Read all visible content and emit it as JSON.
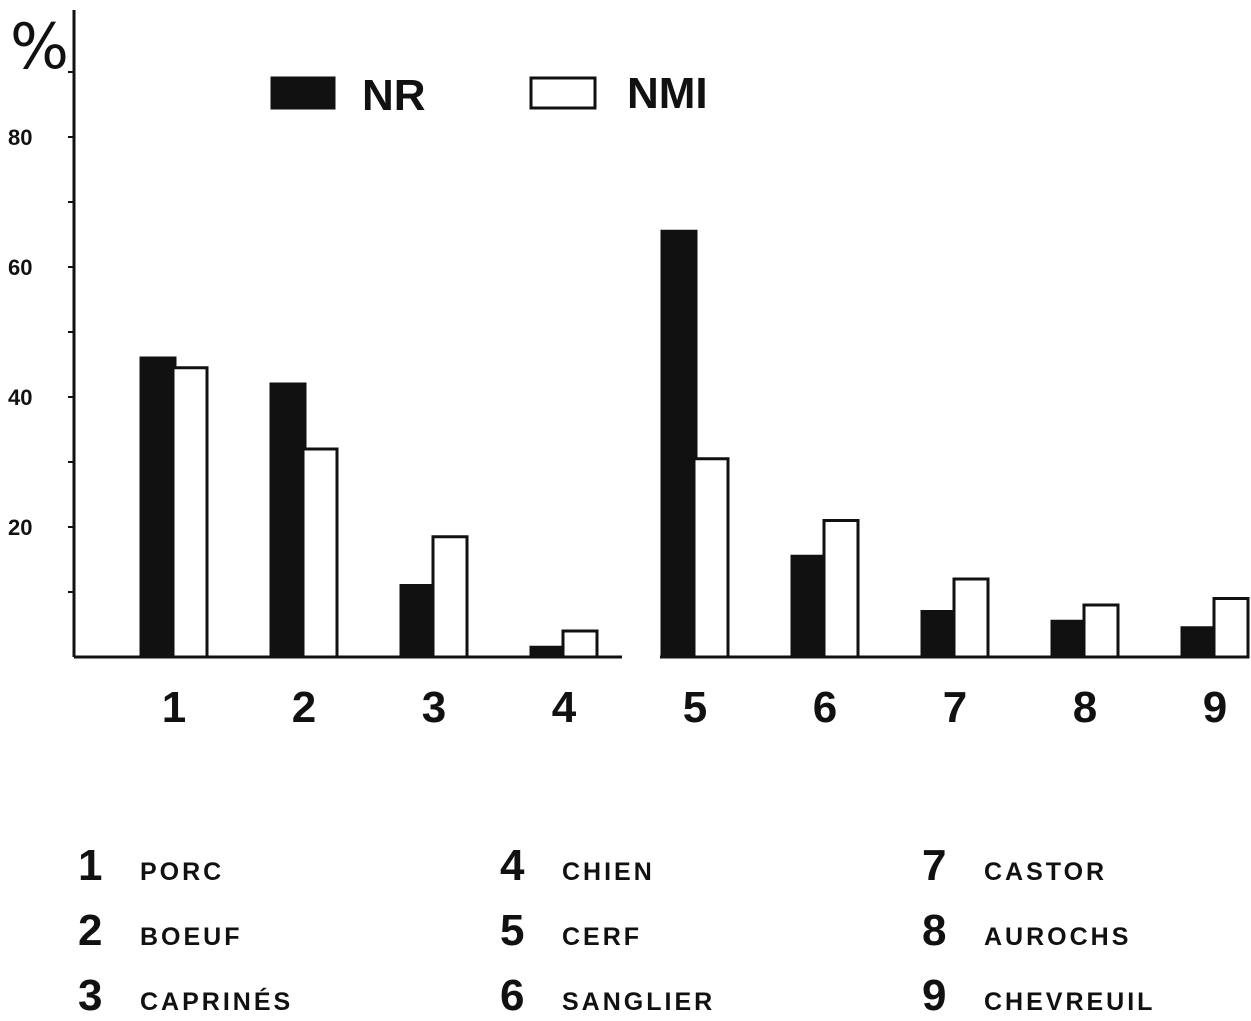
{
  "chart_data": {
    "type": "bar",
    "title": "",
    "xlabel": "",
    "ylabel": "%",
    "ylim": [
      0,
      100
    ],
    "yticks": [
      20,
      40,
      60,
      80
    ],
    "categories": [
      "1",
      "2",
      "3",
      "4",
      "5",
      "6",
      "7",
      "8",
      "9"
    ],
    "series": [
      {
        "name": "NR",
        "fill": "#111111",
        "values": [
          46,
          42,
          11,
          1.5,
          65.5,
          15.5,
          7,
          5.5,
          4.5
        ]
      },
      {
        "name": "NMI",
        "fill": "#ffffff",
        "values": [
          44.5,
          32,
          18.5,
          4,
          30.5,
          21,
          12,
          8,
          9
        ]
      }
    ],
    "grid": false,
    "legend_position": "top-center",
    "key": [
      {
        "num": "1",
        "name": "PORC"
      },
      {
        "num": "2",
        "name": "BOEUF"
      },
      {
        "num": "3",
        "name": "CAPRINÉS"
      },
      {
        "num": "4",
        "name": "CHIEN"
      },
      {
        "num": "5",
        "name": "CERF"
      },
      {
        "num": "6",
        "name": "SANGLIER"
      },
      {
        "num": "7",
        "name": "CASTOR"
      },
      {
        "num": "8",
        "name": "AUROCHS"
      },
      {
        "num": "9",
        "name": "CHEVREUIL"
      }
    ]
  }
}
